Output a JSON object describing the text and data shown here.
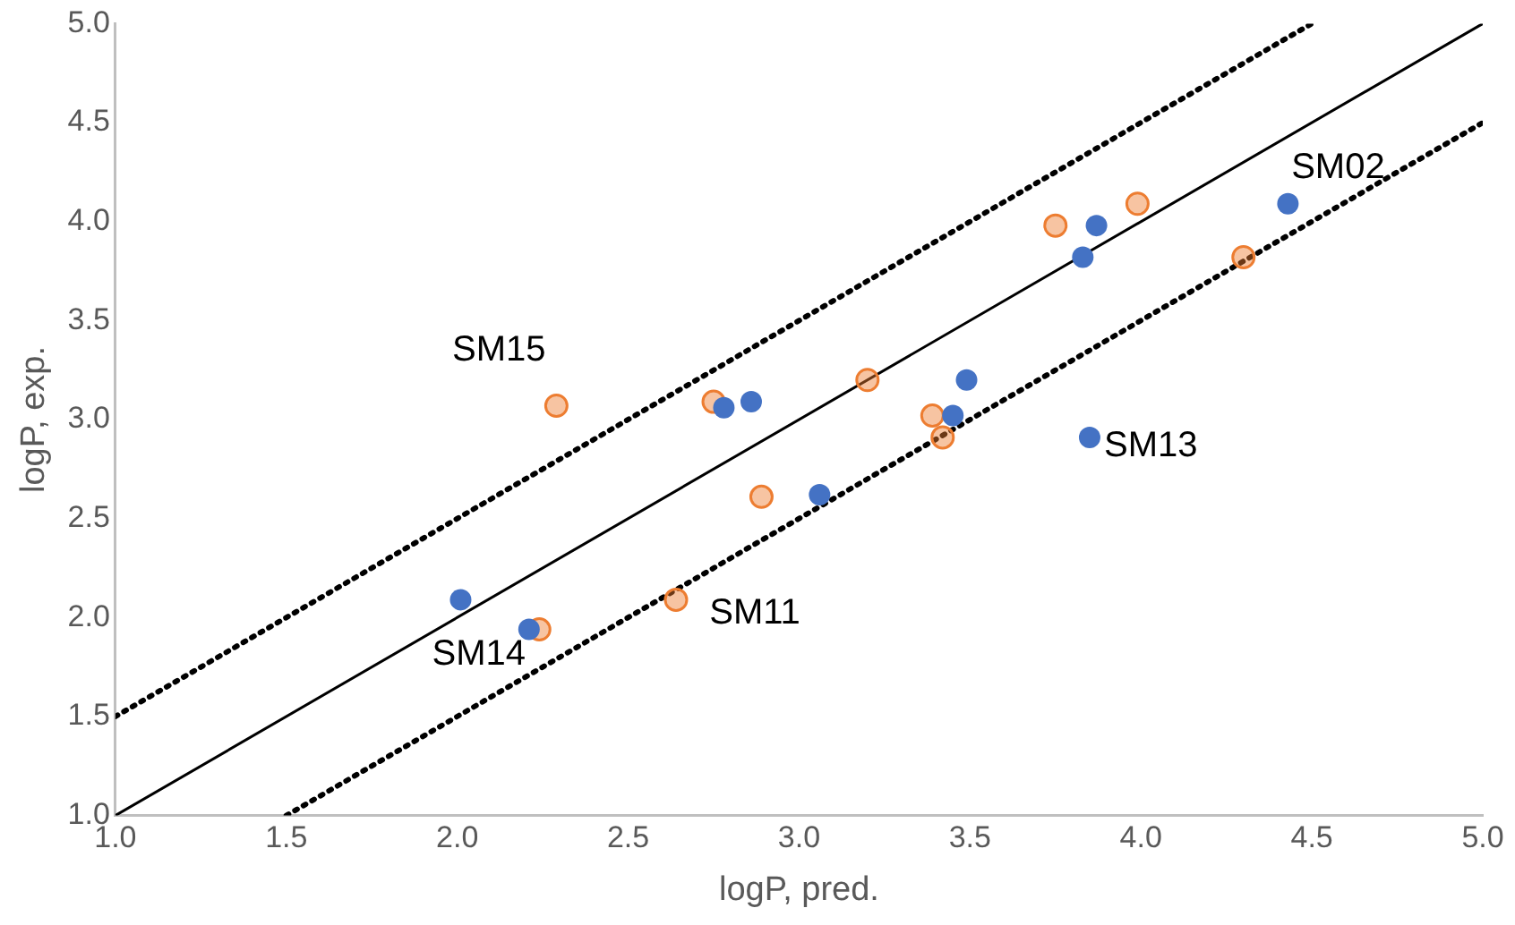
{
  "chart_data": {
    "type": "scatter",
    "xlabel": "logP, pred.",
    "ylabel": "logP, exp.",
    "xlim": [
      1.0,
      5.0
    ],
    "ylim": [
      1.0,
      5.0
    ],
    "xticks": [
      {
        "value": 1,
        "label": "1.0"
      },
      {
        "value": 1.5,
        "label": "1.5"
      },
      {
        "value": 2,
        "label": "2.0"
      },
      {
        "value": 2.5,
        "label": "2.5"
      },
      {
        "value": 3,
        "label": "3.0"
      },
      {
        "value": 3.5,
        "label": "3.5"
      },
      {
        "value": 4,
        "label": "4.0"
      },
      {
        "value": 4.5,
        "label": "4.5"
      },
      {
        "value": 5,
        "label": "5.0"
      }
    ],
    "yticks": [
      {
        "value": 1,
        "label": "1.0"
      },
      {
        "value": 1.5,
        "label": "1.5"
      },
      {
        "value": 2,
        "label": "2.0"
      },
      {
        "value": 2.5,
        "label": "2.5"
      },
      {
        "value": 3,
        "label": "3.0"
      },
      {
        "value": 3.5,
        "label": "3.5"
      },
      {
        "value": 4,
        "label": "4.0"
      },
      {
        "value": 4.5,
        "label": "4.5"
      },
      {
        "value": 5,
        "label": "5.0"
      }
    ],
    "grid": false,
    "legend": false,
    "marker": "circle",
    "series": [
      {
        "color": "#4472c4",
        "x": [
          2.01,
          2.21,
          2.78,
          2.86,
          3.06,
          3.49,
          3.45,
          3.85,
          3.83,
          3.87,
          4.43
        ],
        "values": [
          2.09,
          1.94,
          3.06,
          3.09,
          2.62,
          3.2,
          3.02,
          2.91,
          3.82,
          3.98,
          4.09
        ]
      },
      {
        "color": "#ed7d31",
        "x": [
          2.29,
          2.75,
          2.24,
          2.64,
          2.89,
          3.2,
          3.39,
          3.42,
          3.75,
          3.99,
          4.3
        ],
        "values": [
          3.07,
          3.09,
          1.94,
          2.09,
          2.61,
          3.2,
          3.02,
          2.91,
          3.98,
          4.09,
          3.82
        ]
      },
      {
        "type": "line",
        "color": "#000000",
        "line_style": "solid",
        "marker": "none",
        "x": [
          1,
          5
        ],
        "values": [
          1,
          5
        ]
      },
      {
        "type": "line",
        "color": "#000000",
        "line_style": "dotted",
        "marker": "none",
        "x": [
          1,
          4.5
        ],
        "values": [
          1.5,
          5
        ]
      },
      {
        "type": "line",
        "color": "#000000",
        "line_style": "dotted",
        "marker": "none",
        "x": [
          1.5,
          5
        ],
        "values": [
          1,
          4.5
        ]
      }
    ],
    "annotations": [
      {
        "text": "SM15",
        "x": 2.29,
        "y": 3.07
      },
      {
        "text": "SM02",
        "x": 4.43,
        "y": 4.09
      },
      {
        "text": "SM13",
        "x": 3.85,
        "y": 2.91
      },
      {
        "text": "SM14",
        "x": 2.21,
        "y": 1.94
      },
      {
        "text": "SM11",
        "x": 2.64,
        "y": 2.09
      }
    ]
  }
}
